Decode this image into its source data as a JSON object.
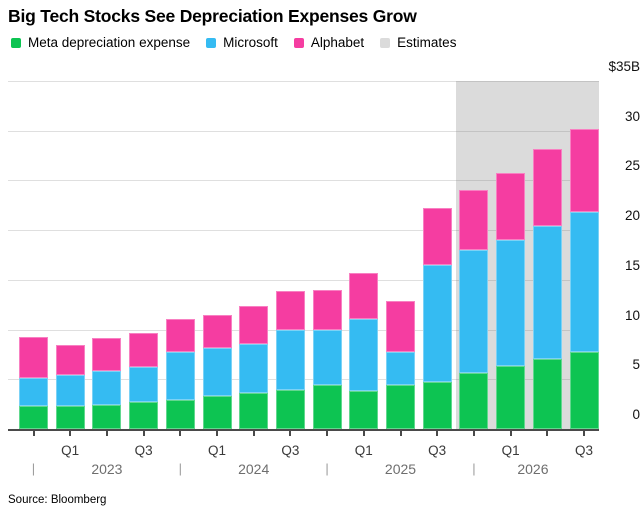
{
  "title": "Big Tech Stocks See Depreciation Expenses Grow",
  "source": "Source: Bloomberg",
  "colors": {
    "meta": "#0dc452",
    "microsoft": "#35bbf2",
    "alphabet": "#f53da1",
    "estimates_band": "#dbdbdb"
  },
  "legend": [
    {
      "label": "Meta depreciation expense",
      "color_key": "meta"
    },
    {
      "label": "Microsoft",
      "color_key": "microsoft"
    },
    {
      "label": "Alphabet",
      "color_key": "alphabet"
    },
    {
      "label": "Estimates",
      "color_key": "estimates_band"
    }
  ],
  "y_axis": {
    "top_label": "$35B",
    "tick_values": [
      30,
      25,
      20,
      15,
      10,
      5,
      0
    ],
    "max": 35
  },
  "x_axis": {
    "quarter_labels": [
      {
        "bar_index": 1,
        "label": "Q1"
      },
      {
        "bar_index": 3,
        "label": "Q3"
      },
      {
        "bar_index": 5,
        "label": "Q1"
      },
      {
        "bar_index": 7,
        "label": "Q3"
      },
      {
        "bar_index": 9,
        "label": "Q1"
      },
      {
        "bar_index": 11,
        "label": "Q3"
      },
      {
        "bar_index": 13,
        "label": "Q1"
      },
      {
        "bar_index": 15,
        "label": "Q3"
      }
    ],
    "separator_char": "|",
    "years": [
      {
        "label": "2023",
        "start_bar_index": 0
      },
      {
        "label": "2024",
        "start_bar_index": 4
      },
      {
        "label": "2025",
        "start_bar_index": 8
      },
      {
        "label": "2026",
        "start_bar_index": 12
      }
    ]
  },
  "chart_data": {
    "type": "bar",
    "stacked": true,
    "unit": "billion USD",
    "ylim": [
      0,
      35
    ],
    "grid": true,
    "legend_position": "top",
    "x": [
      "Q4 2022",
      "Q1 2023",
      "Q2 2023",
      "Q3 2023",
      "Q4 2023",
      "Q1 2024",
      "Q2 2024",
      "Q3 2024",
      "Q4 2024",
      "Q1 2025",
      "Q2 2025",
      "Q3 2025",
      "Q4 2025",
      "Q1 2026",
      "Q2 2026",
      "Q3 2026"
    ],
    "series": [
      {
        "name": "Meta depreciation expense",
        "color_key": "meta",
        "values": [
          2.3,
          2.3,
          2.4,
          2.7,
          2.9,
          3.3,
          3.6,
          3.9,
          4.4,
          3.8,
          4.4,
          4.7,
          5.6,
          6.3,
          7.0,
          7.7
        ]
      },
      {
        "name": "Microsoft",
        "color_key": "microsoft",
        "values": [
          2.8,
          3.1,
          3.4,
          3.5,
          4.8,
          4.8,
          5.0,
          6.1,
          5.6,
          7.3,
          3.3,
          11.8,
          12.4,
          12.7,
          13.4,
          14.1
        ]
      },
      {
        "name": "Alphabet",
        "color_key": "alphabet",
        "values": [
          4.2,
          3.0,
          3.4,
          3.5,
          3.4,
          3.4,
          3.8,
          3.9,
          4.0,
          4.6,
          5.2,
          5.7,
          6.0,
          6.7,
          7.8,
          8.4
        ]
      }
    ],
    "estimates_start_index": 12,
    "title": "Big Tech Stocks See Depreciation Expenses Grow"
  }
}
